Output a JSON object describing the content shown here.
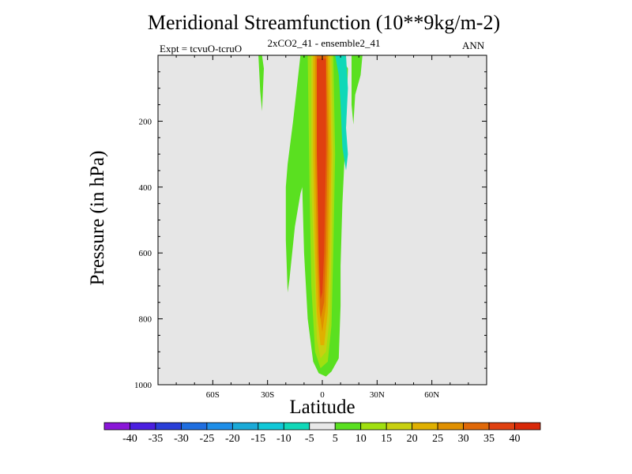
{
  "chart_data": {
    "type": "contour",
    "title": "Meridional Streamfunction (10**9kg/m-2)",
    "subtitle": "2xCO2_41 - ensemble2_41",
    "left_label": "Expt = tcvuO-tcruO",
    "right_label": "ANN",
    "xlabel": "Latitude",
    "ylabel": "Pressure (in hPa)",
    "xlim": [
      -90,
      90
    ],
    "ylim": [
      1000,
      0
    ],
    "x_ticks": [
      {
        "value": -60,
        "label": "60S"
      },
      {
        "value": -30,
        "label": "30S"
      },
      {
        "value": 0,
        "label": "0"
      },
      {
        "value": 30,
        "label": "30N"
      },
      {
        "value": 60,
        "label": "60N"
      }
    ],
    "y_ticks": [
      {
        "value": 200,
        "label": "200"
      },
      {
        "value": 400,
        "label": "400"
      },
      {
        "value": 600,
        "label": "600"
      },
      {
        "value": 800,
        "label": "800"
      },
      {
        "value": 1000,
        "label": "1000"
      }
    ],
    "background_color": "#e6e6e6",
    "colorbar": {
      "labels": [
        "-40",
        "-35",
        "-30",
        "-25",
        "-20",
        "-15",
        "-10",
        "-5",
        "5",
        "10",
        "15",
        "20",
        "25",
        "30",
        "35",
        "40"
      ],
      "colors": [
        "#8a16d8",
        "#4a1fe0",
        "#2a3fd8",
        "#1f6ee0",
        "#1e8ee8",
        "#1aaad8",
        "#10c8d8",
        "#10d8b8",
        "#e8e8e8",
        "#5ae020",
        "#a0e010",
        "#c8d010",
        "#e0b000",
        "#e09000",
        "#e06808",
        "#e04010",
        "#d82808"
      ]
    },
    "regions": [
      {
        "level": "5",
        "color": "#5ae020",
        "points": [
          [
            -35,
            0
          ],
          [
            -33,
            0
          ],
          [
            -32,
            40
          ],
          [
            -33,
            170
          ],
          [
            -34,
            110
          ],
          [
            -35,
            0
          ]
        ]
      },
      {
        "level": "5",
        "color": "#5ae020",
        "points": [
          [
            -12,
            0
          ],
          [
            -16,
            200
          ],
          [
            -19,
            330
          ],
          [
            -20,
            400
          ],
          [
            -20,
            560
          ],
          [
            -19,
            720
          ],
          [
            -18,
            680
          ],
          [
            -15,
            520
          ],
          [
            -12,
            420
          ],
          [
            -6,
            300
          ],
          [
            -5,
            200
          ],
          [
            -6,
            0
          ]
        ]
      },
      {
        "level": "5",
        "color": "#5ae020",
        "points": [
          [
            -6,
            0
          ],
          [
            10,
            0
          ],
          [
            14,
            40
          ],
          [
            13,
            220
          ],
          [
            11,
            450
          ],
          [
            10,
            640
          ],
          [
            10,
            760
          ],
          [
            9,
            920
          ],
          [
            5,
            960
          ],
          [
            2,
            975
          ],
          [
            -2,
            965
          ],
          [
            -5,
            930
          ],
          [
            -8,
            800
          ],
          [
            -10,
            600
          ],
          [
            -11,
            400
          ],
          [
            -10,
            200
          ],
          [
            -8,
            0
          ]
        ]
      },
      {
        "level": "5",
        "color": "#5ae020",
        "points": [
          [
            16,
            0
          ],
          [
            22,
            0
          ],
          [
            21,
            60
          ],
          [
            18,
            120
          ],
          [
            17,
            210
          ],
          [
            16,
            150
          ],
          [
            16,
            0
          ]
        ]
      },
      {
        "level": "-5",
        "color": "#10d8b8",
        "points": [
          [
            7,
            0
          ],
          [
            13,
            0
          ],
          [
            14,
            100
          ],
          [
            13,
            220
          ],
          [
            14,
            300
          ],
          [
            13,
            350
          ],
          [
            11,
            280
          ],
          [
            10,
            150
          ],
          [
            9,
            60
          ],
          [
            7,
            0
          ]
        ]
      },
      {
        "level": "10",
        "color": "#a0e010",
        "points": [
          [
            -8,
            0
          ],
          [
            6,
            0
          ],
          [
            7,
            300
          ],
          [
            6,
            600
          ],
          [
            5,
            820
          ],
          [
            3,
            930
          ],
          [
            -1,
            950
          ],
          [
            -4,
            900
          ],
          [
            -6,
            700
          ],
          [
            -7,
            400
          ],
          [
            -8,
            0
          ]
        ]
      },
      {
        "level": "15",
        "color": "#c8d010",
        "points": [
          [
            -6,
            0
          ],
          [
            5,
            0
          ],
          [
            6,
            300
          ],
          [
            5,
            600
          ],
          [
            4,
            800
          ],
          [
            2,
            900
          ],
          [
            -1,
            920
          ],
          [
            -3,
            860
          ],
          [
            -4,
            700
          ],
          [
            -6,
            400
          ],
          [
            -6,
            0
          ]
        ]
      },
      {
        "level": "25",
        "color": "#e0b000",
        "points": [
          [
            -5,
            0
          ],
          [
            4,
            0
          ],
          [
            5,
            300
          ],
          [
            4,
            600
          ],
          [
            3,
            780
          ],
          [
            1,
            880
          ],
          [
            -1,
            880
          ],
          [
            -3,
            780
          ],
          [
            -4,
            600
          ],
          [
            -5,
            300
          ],
          [
            -5,
            0
          ]
        ]
      },
      {
        "level": "30",
        "color": "#e09000",
        "points": [
          [
            -4,
            0
          ],
          [
            3,
            0
          ],
          [
            4,
            300
          ],
          [
            3,
            600
          ],
          [
            2,
            760
          ],
          [
            0,
            840
          ],
          [
            -2,
            760
          ],
          [
            -3,
            600
          ],
          [
            -4,
            300
          ],
          [
            -4,
            0
          ]
        ]
      },
      {
        "level": "35",
        "color": "#e06808",
        "points": [
          [
            -3,
            0
          ],
          [
            2,
            0
          ],
          [
            3,
            250
          ],
          [
            2,
            600
          ],
          [
            1,
            750
          ],
          [
            -1,
            800
          ],
          [
            -2,
            650
          ],
          [
            -3,
            250
          ],
          [
            -3,
            0
          ]
        ]
      },
      {
        "level": "40",
        "color": "#e04010",
        "points": [
          [
            -3,
            10
          ],
          [
            2,
            10
          ],
          [
            2,
            300
          ],
          [
            1,
            600
          ],
          [
            0,
            720
          ],
          [
            -1,
            740
          ],
          [
            -2,
            600
          ],
          [
            -3,
            300
          ],
          [
            -3,
            10
          ]
        ]
      }
    ]
  }
}
